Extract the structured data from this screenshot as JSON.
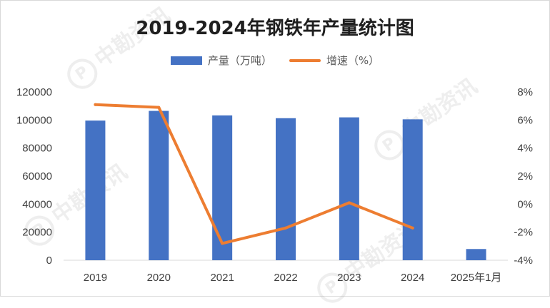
{
  "watermark": "中勘资讯",
  "chart_data": {
    "type": "bar",
    "title": "2019-2024年钢铁年产量统计图",
    "categories": [
      "2019",
      "2020",
      "2021",
      "2022",
      "2023",
      "2024",
      "2025年1月"
    ],
    "series": [
      {
        "name": "产量（万吨）",
        "type": "bar",
        "axis": "left",
        "color": "#4472c4",
        "values": [
          99600,
          106500,
          103300,
          101300,
          101900,
          100500,
          8000
        ]
      },
      {
        "name": "增速（%）",
        "type": "line",
        "axis": "right",
        "color": "#ed7d31",
        "values": [
          7.1,
          6.9,
          -2.8,
          -1.7,
          0.1,
          -1.7,
          null
        ]
      }
    ],
    "y_left": {
      "min": 0,
      "max": 120000,
      "step": 20000,
      "ticks": [
        "0",
        "20000",
        "40000",
        "60000",
        "80000",
        "100000",
        "120000"
      ]
    },
    "y_right": {
      "min": -4,
      "max": 8,
      "step": 2,
      "ticks": [
        "-4%",
        "-2%",
        "0%",
        "2%",
        "4%",
        "6%",
        "8%"
      ]
    },
    "legend_position": "top",
    "grid": false
  }
}
